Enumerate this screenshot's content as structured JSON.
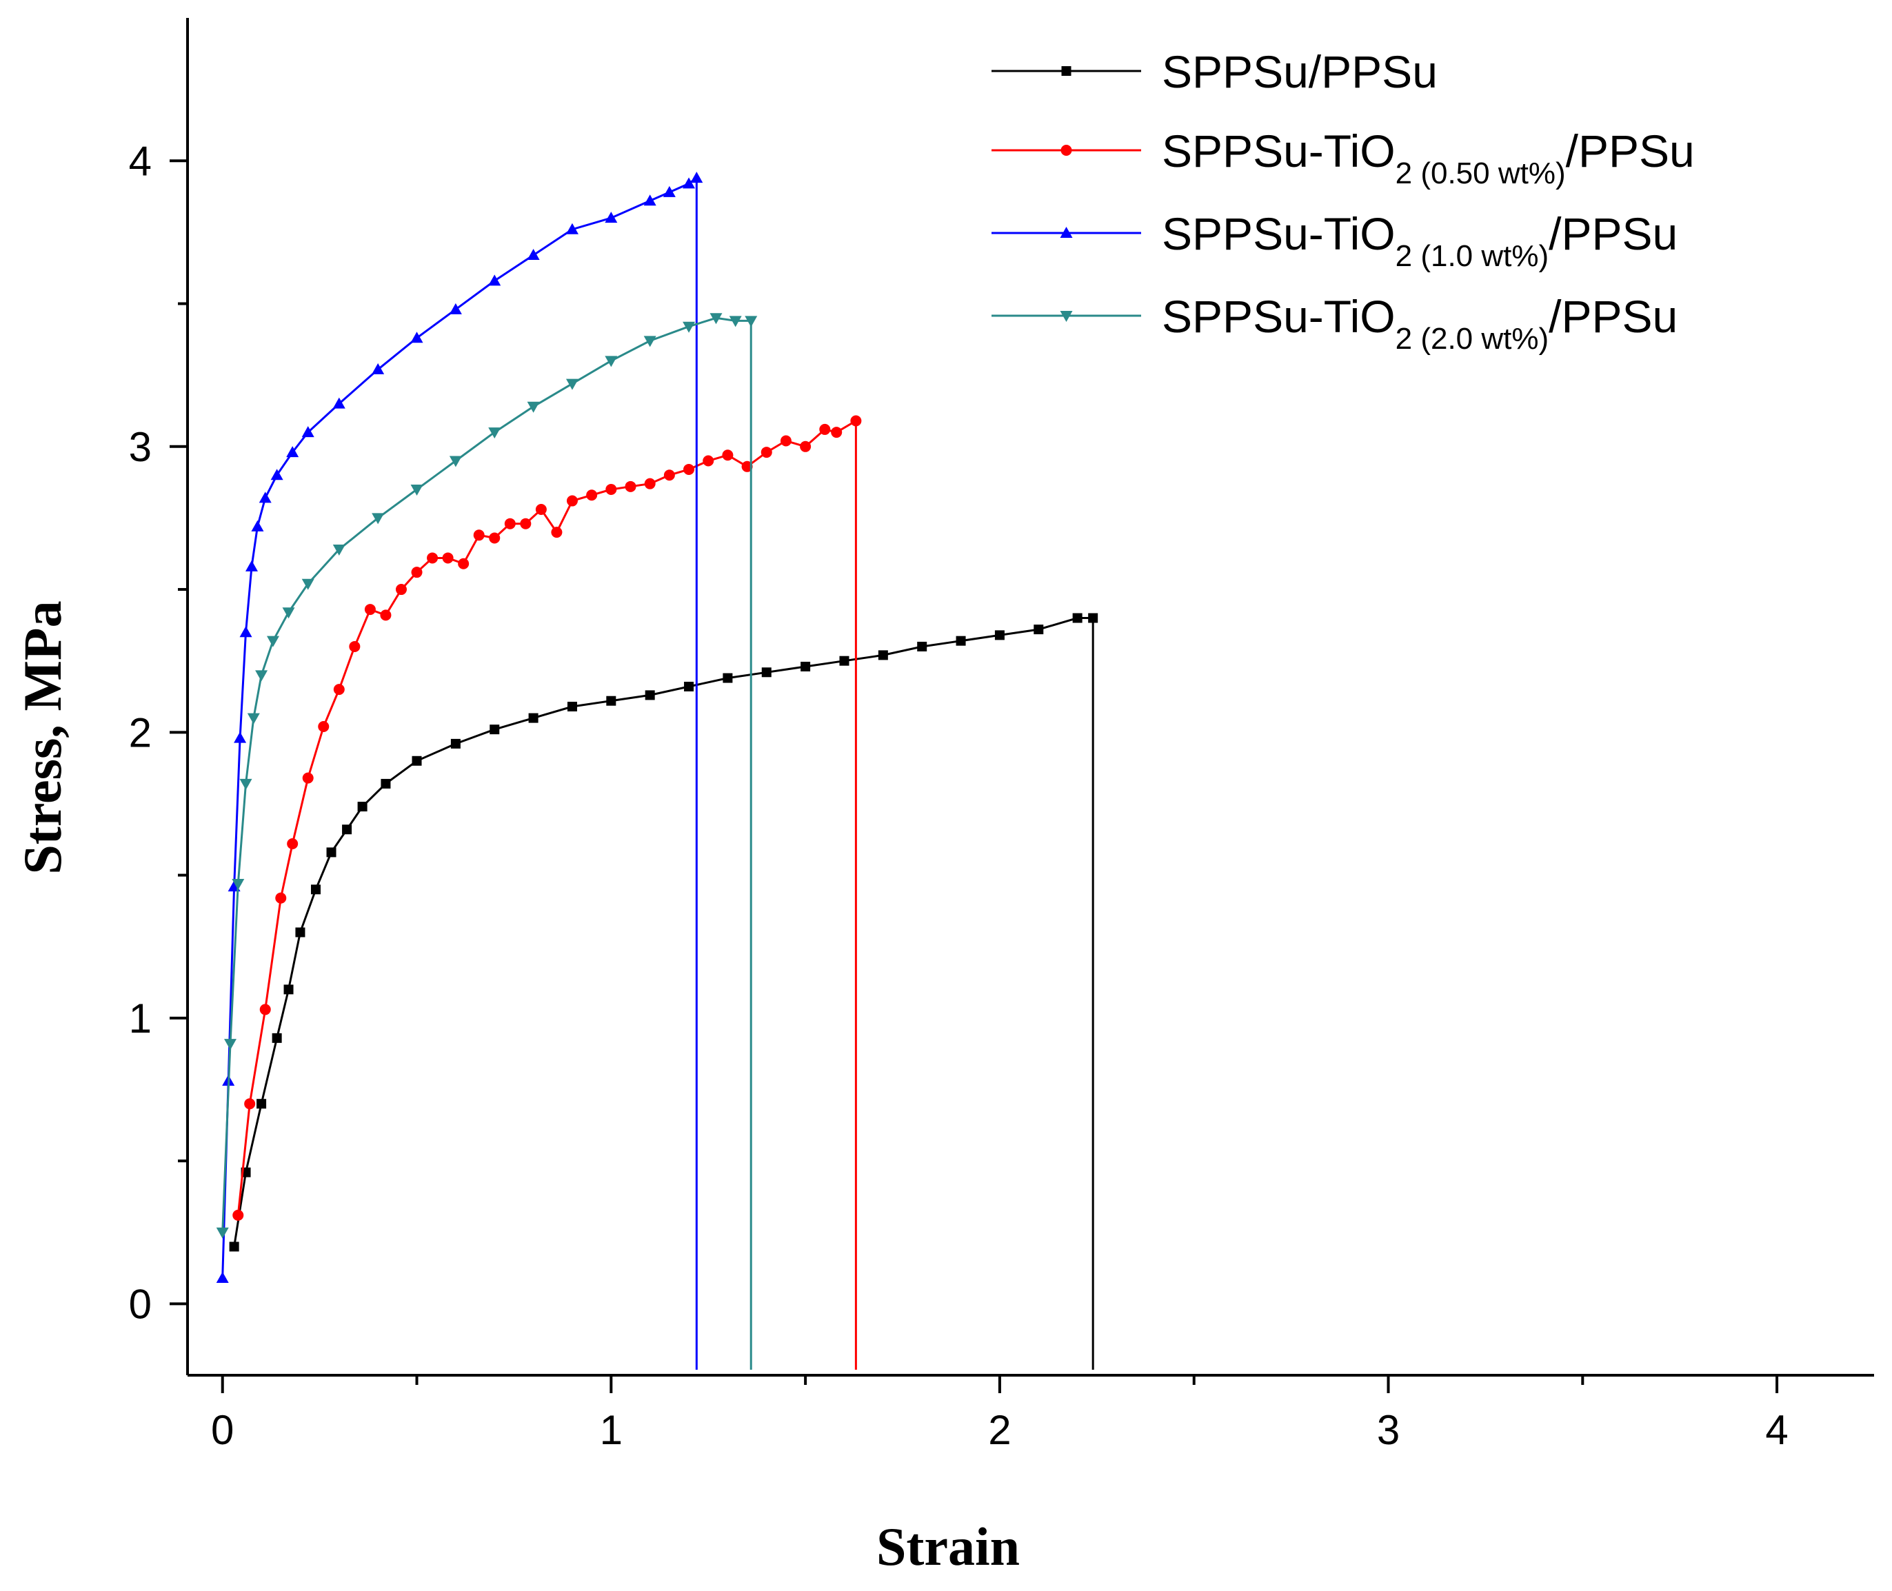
{
  "chart_data": {
    "type": "line",
    "title": "",
    "xlabel": "Strain",
    "ylabel": "Stress, MPa",
    "xlim": [
      -0.09,
      4.25
    ],
    "ylim": [
      -0.25,
      4.5
    ],
    "xticks": [
      0,
      1,
      2,
      3,
      4
    ],
    "xtick_labels": [
      "0",
      "1",
      "2",
      "3",
      "4"
    ],
    "xminor": [
      0.5,
      1.5,
      2.5,
      3.5
    ],
    "yticks": [
      0,
      1,
      2,
      3,
      4
    ],
    "ytick_labels": [
      "0",
      "1",
      "2",
      "3",
      "4"
    ],
    "yminor": [
      0.5,
      1.5,
      2.5,
      3.5
    ],
    "grid": false,
    "legend_position": "top-right",
    "series": [
      {
        "name": "SPPSu/PPSu",
        "legend_main": "SPPSu/PPSu",
        "legend_sub": "",
        "legend_tail": "",
        "color": "#000000",
        "marker": "square",
        "x": [
          0.03,
          0.06,
          0.1,
          0.14,
          0.17,
          0.2,
          0.24,
          0.28,
          0.32,
          0.36,
          0.42,
          0.5,
          0.6,
          0.7,
          0.8,
          0.9,
          1.0,
          1.1,
          1.2,
          1.3,
          1.4,
          1.5,
          1.6,
          1.7,
          1.8,
          1.9,
          2.0,
          2.1,
          2.2,
          2.24
        ],
        "y": [
          0.2,
          0.46,
          0.7,
          0.93,
          1.1,
          1.3,
          1.45,
          1.58,
          1.66,
          1.74,
          1.82,
          1.9,
          1.96,
          2.01,
          2.05,
          2.09,
          2.11,
          2.13,
          2.16,
          2.19,
          2.21,
          2.23,
          2.25,
          2.27,
          2.3,
          2.32,
          2.34,
          2.36,
          2.4,
          2.4
        ],
        "fracture_strain": 2.24
      },
      {
        "name": "SPPSu-TiO2 (0.50 wt%)/PPSu",
        "legend_main": "SPPSu-TiO",
        "legend_sub": "2 (0.50 wt%)",
        "legend_tail": "/PPSu",
        "color": "#ff0000",
        "marker": "circle",
        "x": [
          0.04,
          0.07,
          0.11,
          0.15,
          0.18,
          0.22,
          0.26,
          0.3,
          0.34,
          0.38,
          0.42,
          0.46,
          0.5,
          0.54,
          0.58,
          0.62,
          0.66,
          0.7,
          0.74,
          0.78,
          0.82,
          0.86,
          0.9,
          0.95,
          1.0,
          1.05,
          1.1,
          1.15,
          1.2,
          1.25,
          1.3,
          1.35,
          1.4,
          1.45,
          1.5,
          1.55,
          1.58,
          1.63
        ],
        "y": [
          0.31,
          0.7,
          1.03,
          1.42,
          1.61,
          1.84,
          2.02,
          2.15,
          2.3,
          2.43,
          2.41,
          2.5,
          2.56,
          2.61,
          2.61,
          2.59,
          2.69,
          2.68,
          2.73,
          2.73,
          2.78,
          2.7,
          2.81,
          2.83,
          2.85,
          2.86,
          2.87,
          2.9,
          2.92,
          2.95,
          2.97,
          2.93,
          2.98,
          3.02,
          3.0,
          3.06,
          3.05,
          3.09
        ],
        "fracture_strain": 1.63
      },
      {
        "name": "SPPSu-TiO2 (1.0 wt%)/PPSu",
        "legend_main": "SPPSu-TiO",
        "legend_sub": "2 (1.0 wt%)",
        "legend_tail": "/PPSu",
        "color": "#0000ff",
        "marker": "triangle-up",
        "x": [
          0.0,
          0.015,
          0.03,
          0.045,
          0.06,
          0.075,
          0.09,
          0.11,
          0.14,
          0.18,
          0.22,
          0.3,
          0.4,
          0.5,
          0.6,
          0.7,
          0.8,
          0.9,
          1.0,
          1.1,
          1.15,
          1.2,
          1.22
        ],
        "y": [
          0.09,
          0.78,
          1.46,
          1.98,
          2.35,
          2.58,
          2.72,
          2.82,
          2.9,
          2.98,
          3.05,
          3.15,
          3.27,
          3.38,
          3.48,
          3.58,
          3.67,
          3.76,
          3.8,
          3.86,
          3.89,
          3.92,
          3.94
        ],
        "fracture_strain": 1.22
      },
      {
        "name": "SPPSu-TiO2 (2.0 wt%)/PPSu",
        "legend_main": "SPPSu-TiO",
        "legend_sub": "2 (2.0 wt%)",
        "legend_tail": "/PPSu",
        "color": "#2a8a8a",
        "marker": "triangle-down",
        "x": [
          0.0,
          0.02,
          0.04,
          0.06,
          0.08,
          0.1,
          0.13,
          0.17,
          0.22,
          0.3,
          0.4,
          0.5,
          0.6,
          0.7,
          0.8,
          0.9,
          1.0,
          1.1,
          1.2,
          1.27,
          1.32,
          1.36
        ],
        "y": [
          0.25,
          0.91,
          1.47,
          1.82,
          2.05,
          2.2,
          2.32,
          2.42,
          2.52,
          2.64,
          2.75,
          2.85,
          2.95,
          3.05,
          3.14,
          3.22,
          3.3,
          3.37,
          3.42,
          3.45,
          3.44,
          3.44
        ],
        "fracture_strain": 1.36
      }
    ]
  }
}
